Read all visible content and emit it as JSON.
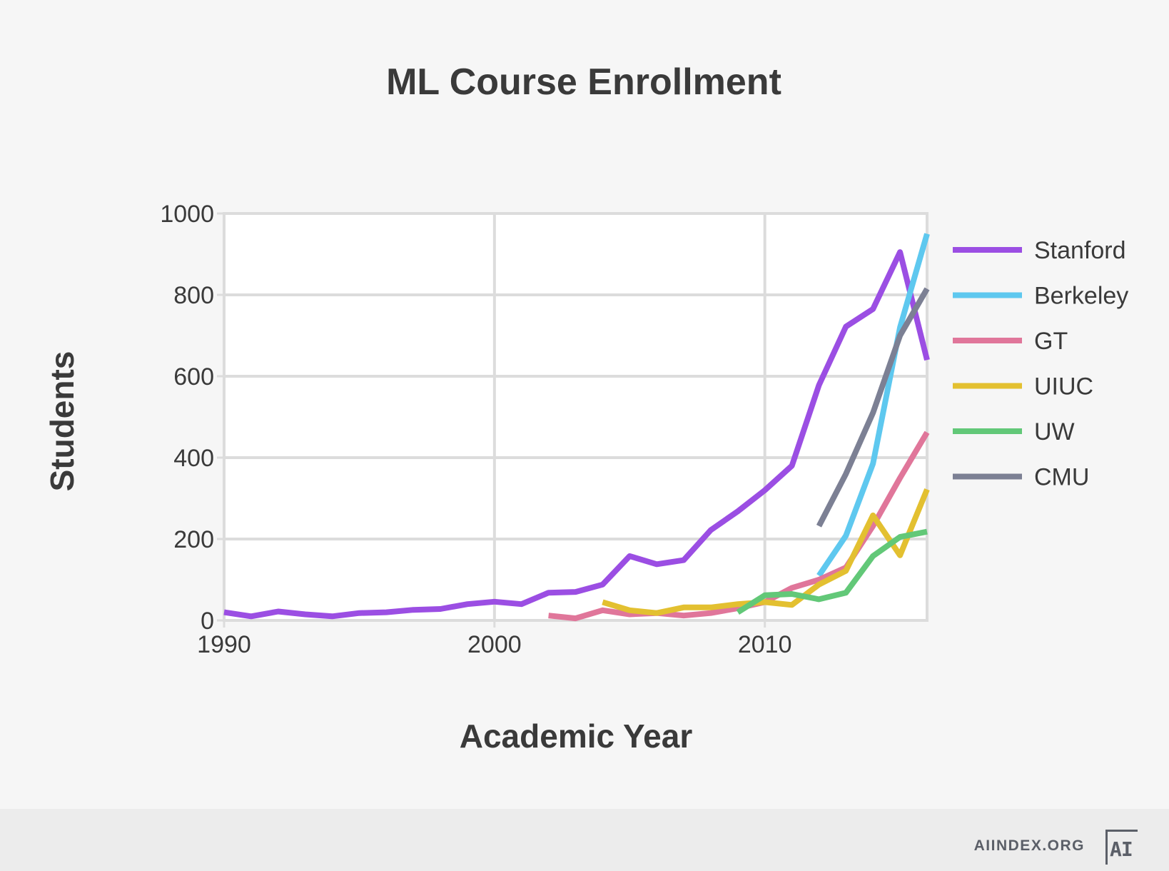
{
  "chart_data": {
    "type": "line",
    "title": "ML Course Enrollment",
    "xlabel": "Academic Year",
    "ylabel": "Students",
    "xlim": [
      1990,
      2016
    ],
    "ylim": [
      0,
      1000
    ],
    "x_ticks": [
      1990,
      2000,
      2010
    ],
    "y_ticks": [
      0,
      200,
      400,
      600,
      800,
      1000
    ],
    "grid": true,
    "legend_position": "right",
    "series": [
      {
        "name": "Stanford",
        "color": "#9b4ee3",
        "x": [
          1990,
          1991,
          1992,
          1993,
          1994,
          1995,
          1996,
          1997,
          1998,
          1999,
          2000,
          2001,
          2002,
          2003,
          2004,
          2005,
          2006,
          2007,
          2008,
          2009,
          2010,
          2011,
          2012,
          2013,
          2014,
          2015,
          2016
        ],
        "y": [
          20,
          10,
          22,
          15,
          10,
          18,
          20,
          26,
          28,
          40,
          46,
          40,
          68,
          70,
          88,
          158,
          138,
          148,
          222,
          268,
          320,
          380,
          578,
          722,
          765,
          905,
          640
        ]
      },
      {
        "name": "Berkeley",
        "color": "#5ec8ef",
        "x": [
          2012,
          2013,
          2014,
          2015,
          2016
        ],
        "y": [
          110,
          208,
          385,
          720,
          950
        ]
      },
      {
        "name": "GT",
        "color": "#e0769a",
        "x": [
          2002,
          2003,
          2004,
          2005,
          2006,
          2007,
          2008,
          2009,
          2010,
          2011,
          2012,
          2013,
          2014,
          2015,
          2016
        ],
        "y": [
          12,
          5,
          25,
          15,
          18,
          12,
          18,
          30,
          45,
          80,
          100,
          130,
          232,
          350,
          462
        ]
      },
      {
        "name": "UIUC",
        "color": "#e3c030",
        "x": [
          2004,
          2005,
          2006,
          2007,
          2008,
          2009,
          2010,
          2011,
          2012,
          2013,
          2014,
          2015,
          2016
        ],
        "y": [
          45,
          25,
          18,
          32,
          32,
          40,
          45,
          38,
          88,
          122,
          258,
          160,
          322
        ]
      },
      {
        "name": "UW",
        "color": "#62c878",
        "x": [
          2009,
          2010,
          2011,
          2012,
          2013,
          2014,
          2015,
          2016
        ],
        "y": [
          20,
          62,
          65,
          52,
          68,
          158,
          205,
          218
        ]
      },
      {
        "name": "CMU",
        "color": "#7c8094",
        "x": [
          2012,
          2013,
          2014,
          2015,
          2016
        ],
        "y": [
          232,
          360,
          510,
          700,
          815
        ]
      }
    ]
  },
  "footer": {
    "site": "AIINDEX.ORG",
    "logo_text": "AI"
  }
}
